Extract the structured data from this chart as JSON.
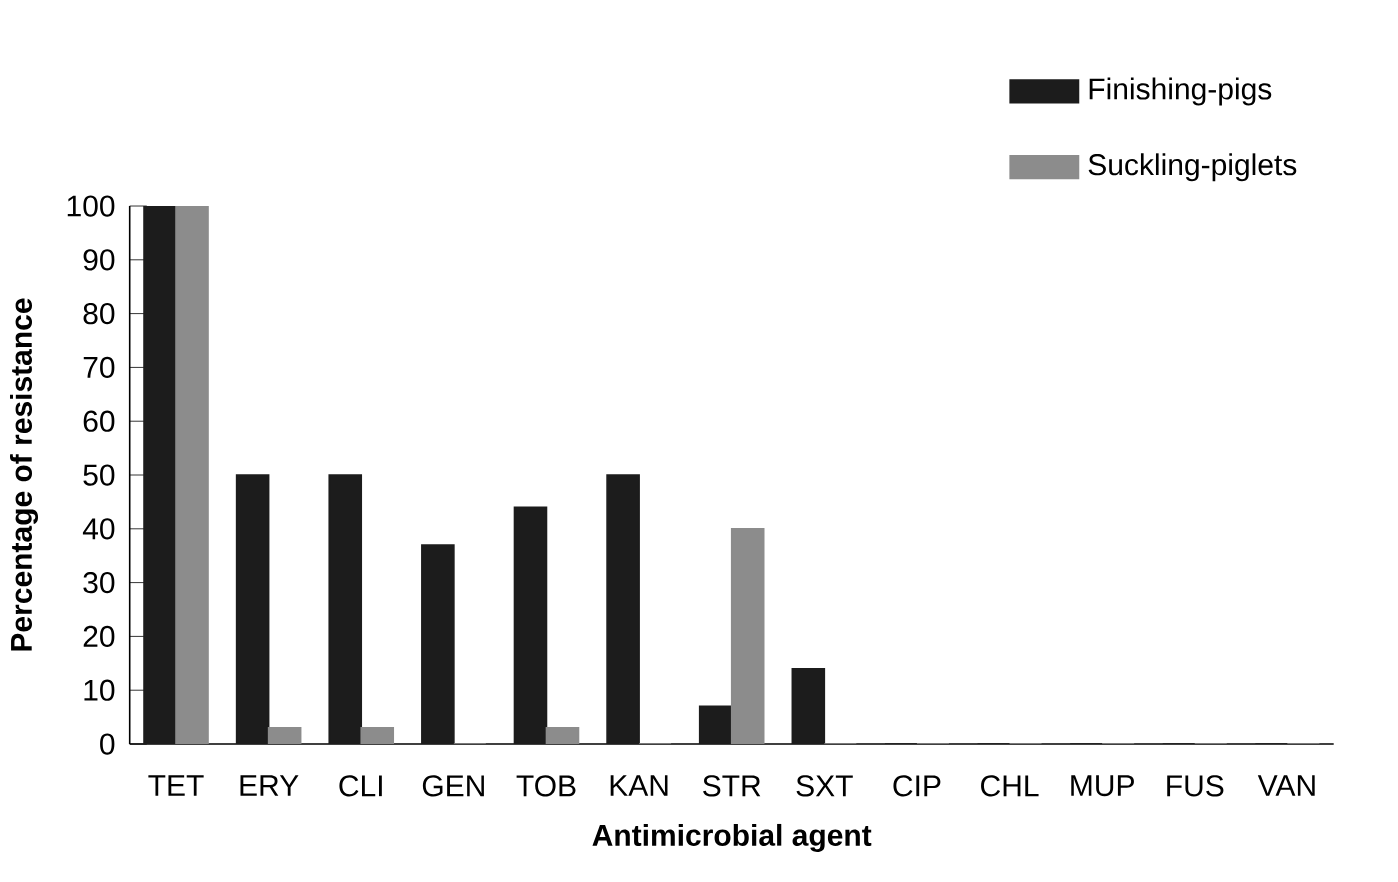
{
  "chart_data": {
    "type": "bar",
    "xlabel": "Antimicrobial agent",
    "ylabel": "Percentage of resistance",
    "categories": [
      "TET",
      "ERY",
      "CLI",
      "GEN",
      "TOB",
      "KAN",
      "STR",
      "SXT",
      "CIP",
      "CHL",
      "MUP",
      "FUS",
      "VAN"
    ],
    "series": [
      {
        "name": "Finishing-pigs",
        "color": "#1c1c1c",
        "values": [
          100,
          50,
          50,
          37,
          44,
          50,
          7,
          14,
          0,
          0,
          0,
          0,
          0
        ]
      },
      {
        "name": "Suckling-piglets",
        "color": "#8c8c8c",
        "values": [
          100,
          3,
          3,
          0,
          3,
          0,
          40,
          0,
          0,
          0,
          0,
          0,
          0
        ]
      }
    ],
    "ylim": [
      0,
      100
    ],
    "yticks": [
      0,
      10,
      20,
      30,
      40,
      50,
      60,
      70,
      80,
      90,
      100
    ],
    "grid": false,
    "legend": "top right"
  }
}
